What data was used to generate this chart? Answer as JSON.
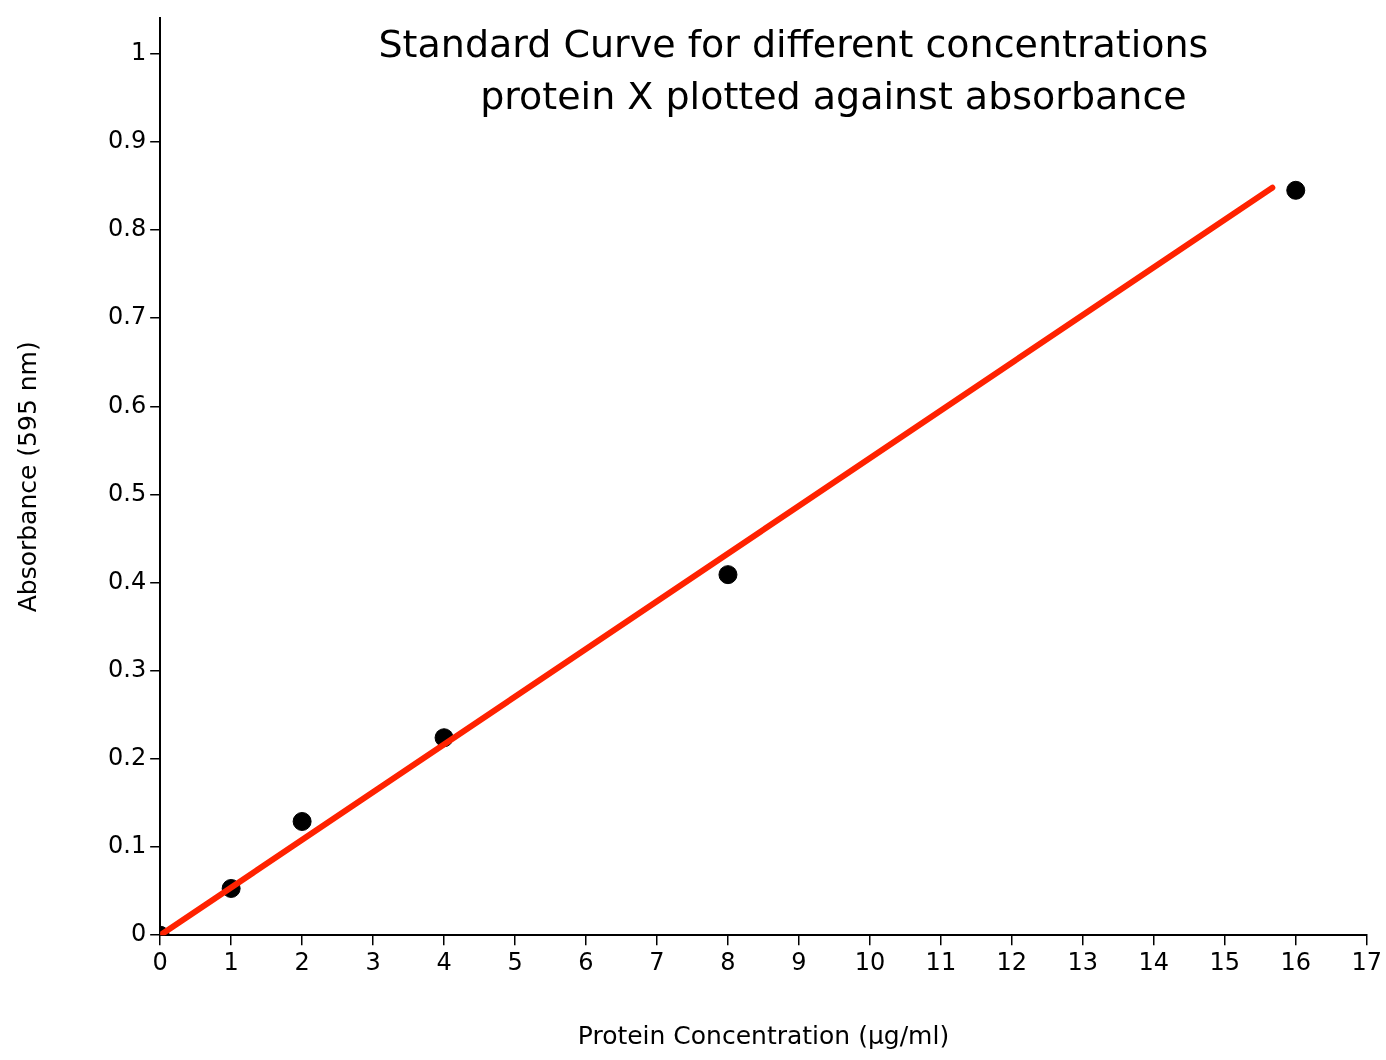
{
  "chart_data": {
    "type": "scatter",
    "title": "Standard Curve for different concentrations\n protein X plotted against absorbance",
    "xlabel": "Protein Concentration (μg/ml)",
    "ylabel": "Absorbance (595 nm)",
    "xlim": [
      0,
      17
    ],
    "ylim": [
      0,
      1.04
    ],
    "xticks": [
      0,
      1,
      2,
      3,
      4,
      5,
      6,
      7,
      8,
      9,
      10,
      11,
      12,
      13,
      14,
      15,
      16,
      17
    ],
    "yticks": [
      0,
      0.1,
      0.2,
      0.3,
      0.4,
      0.5,
      0.6,
      0.7,
      0.8,
      0.9,
      1
    ],
    "grid": false,
    "series": [
      {
        "type": "line",
        "color": "#ff2200",
        "marker": "none",
        "x": [
          0,
          15.67
        ],
        "values": [
          0,
          0.848
        ]
      },
      {
        "type": "scatter",
        "color": "#000000",
        "marker": "circle",
        "x": [
          0,
          1,
          2,
          4,
          8,
          16
        ],
        "values": [
          0,
          0.053,
          0.129,
          0.224,
          0.409,
          0.845
        ]
      }
    ]
  }
}
